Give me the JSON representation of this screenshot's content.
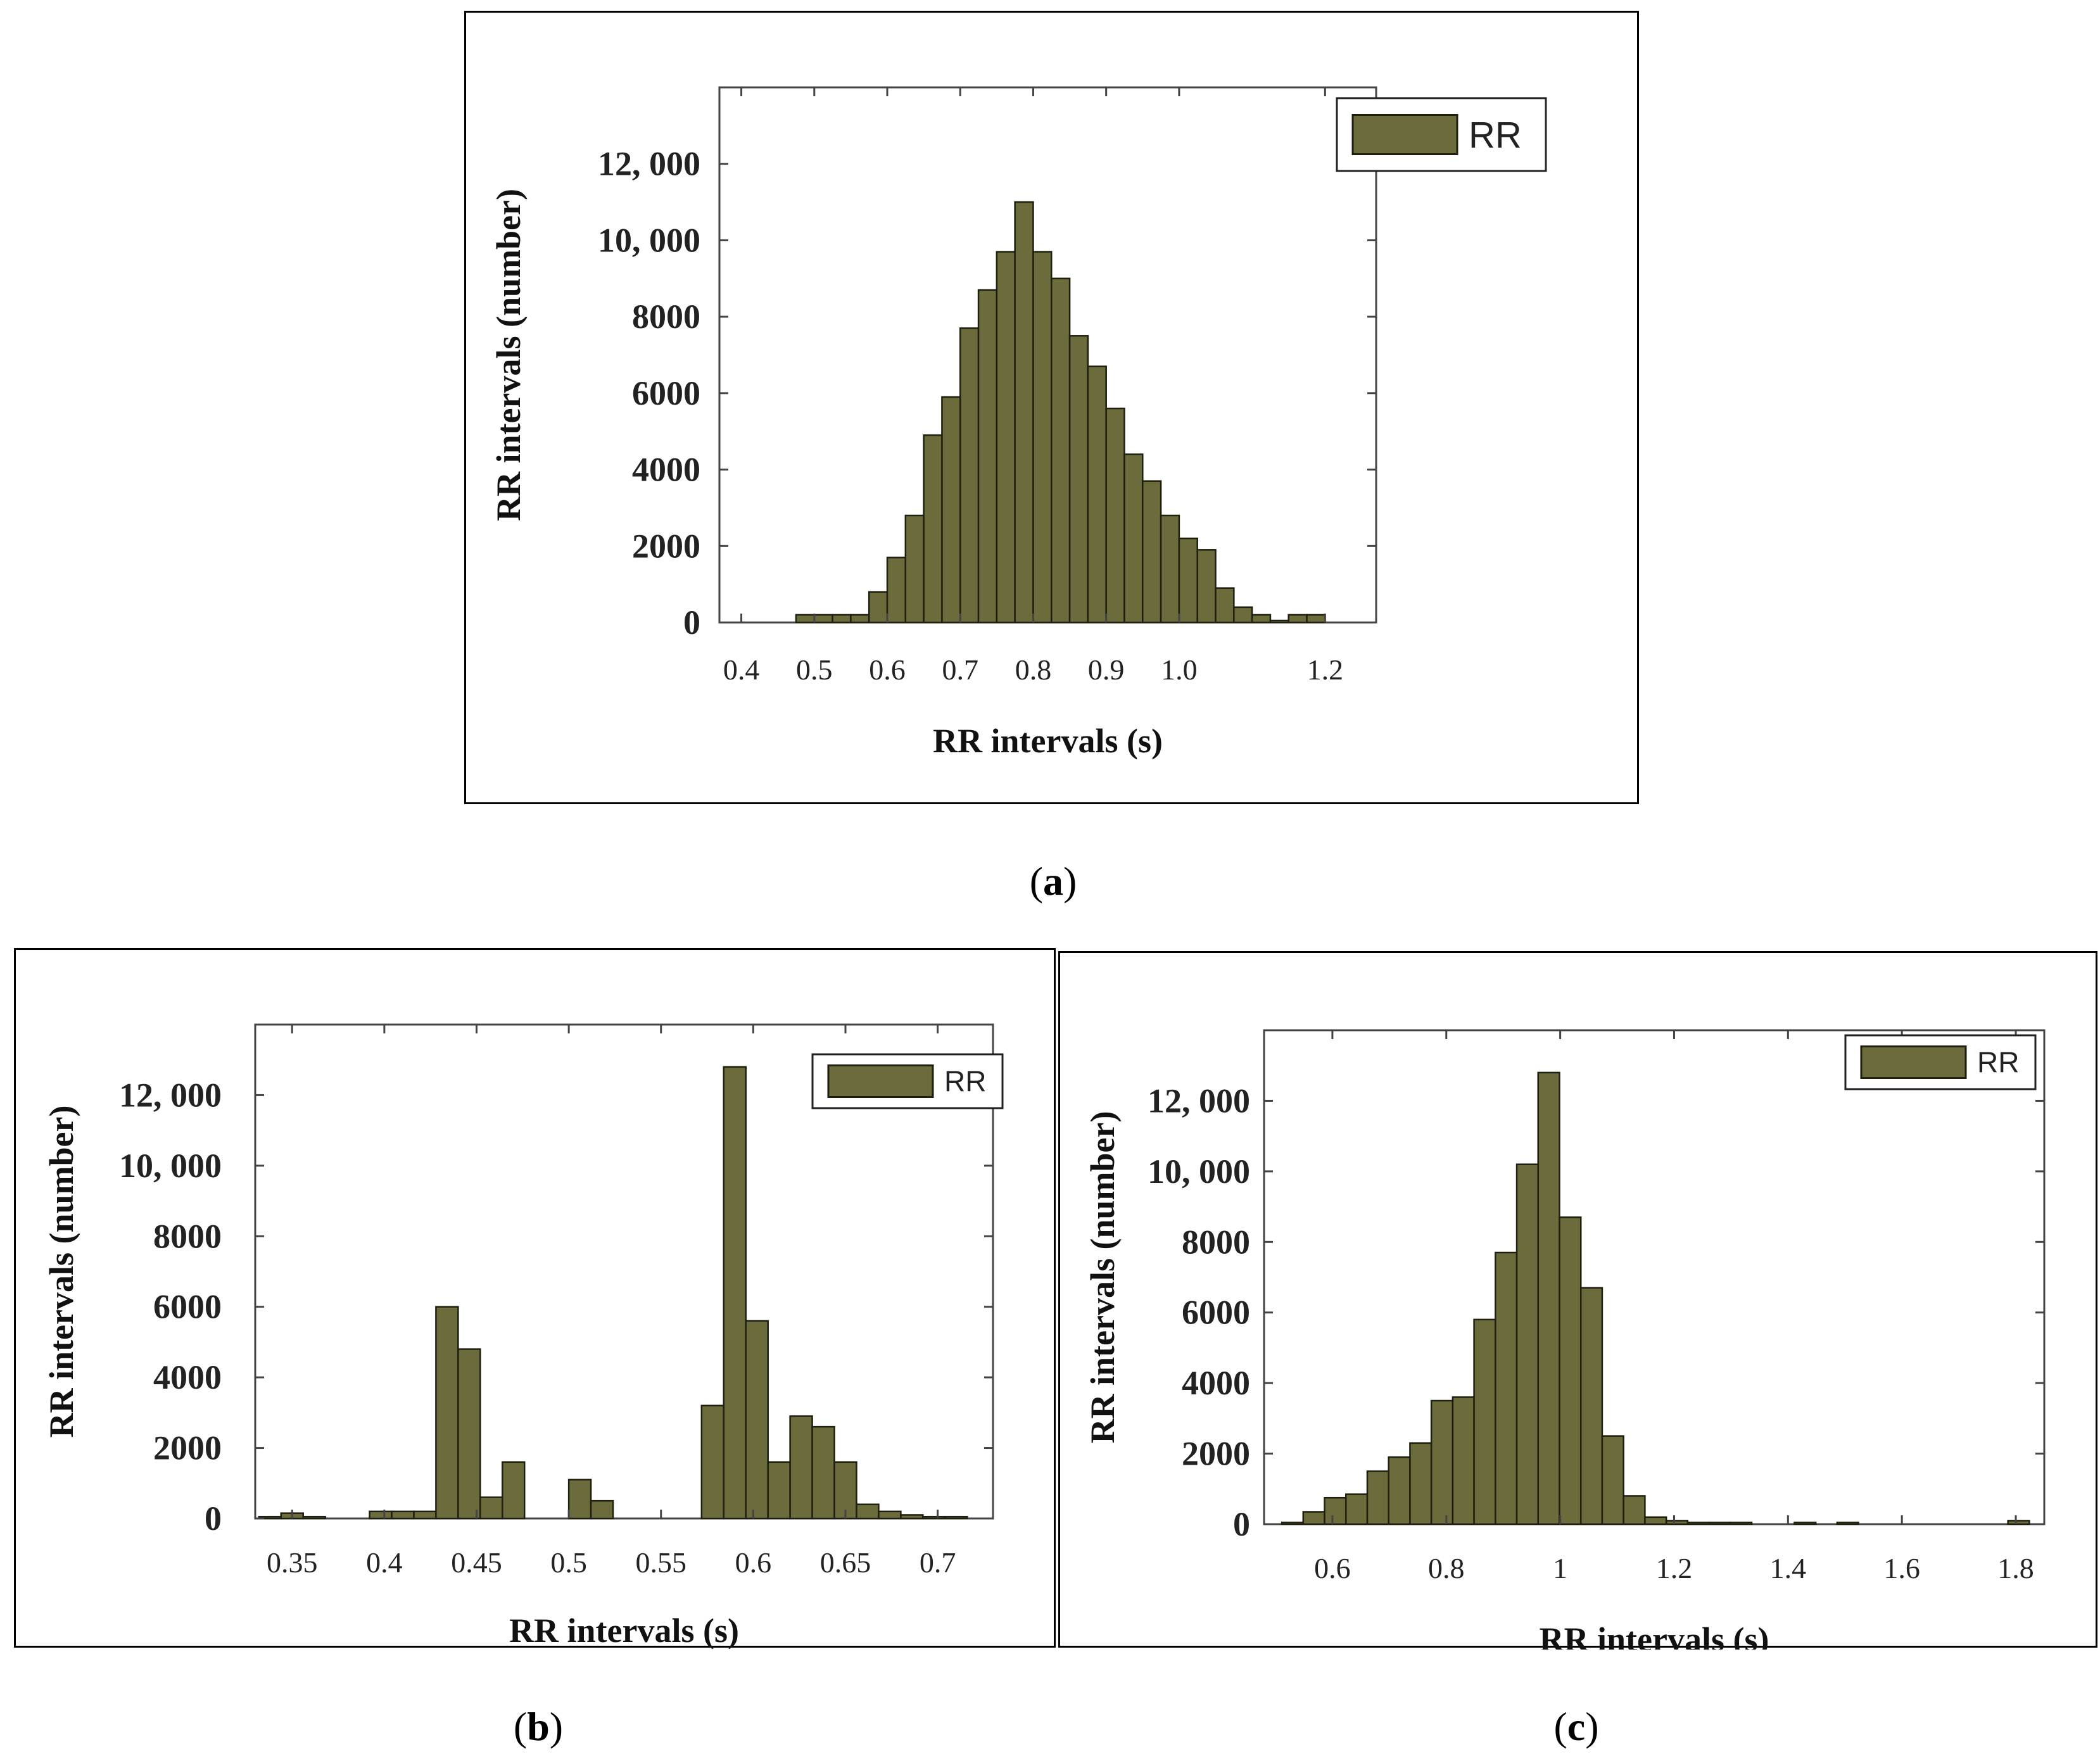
{
  "colors": {
    "bar_fill": "#6b6b3c",
    "bar_stroke": "#1f1f10",
    "frame": "#000000"
  },
  "panels": [
    {
      "caption": "a",
      "chart_data": {
        "type": "bar",
        "title": "",
        "xlabel": "RR intervals (s)",
        "ylabel": "RR intervals (number)",
        "legend": [
          "RR"
        ],
        "legend_position": "top-right",
        "xlim": [
          0.37,
          1.27
        ],
        "ylim": [
          0,
          14000
        ],
        "x_ticks": [
          0.4,
          0.5,
          0.6,
          0.7,
          0.8,
          0.9,
          1.0,
          1.2
        ],
        "x_tick_labels": [
          "0.4",
          "0.5",
          "0.6",
          "0.7",
          "0.8",
          "0.9",
          "1.0",
          "1.2"
        ],
        "y_ticks": [
          0,
          2000,
          4000,
          6000,
          8000,
          10000,
          12000
        ],
        "y_tick_labels": [
          "0",
          "2000",
          "4000",
          "6000",
          "8000",
          "10, 000",
          "12, 000"
        ],
        "bin_width": 0.025,
        "series": [
          {
            "name": "RR",
            "x": [
              0.4875,
              0.5125,
              0.5375,
              0.5625,
              0.5875,
              0.6125,
              0.6375,
              0.6625,
              0.6875,
              0.7125,
              0.7375,
              0.7625,
              0.7875,
              0.8125,
              0.8375,
              0.8625,
              0.8875,
              0.9125,
              0.9375,
              0.9625,
              0.9875,
              1.0125,
              1.0375,
              1.0625,
              1.0875,
              1.1125,
              1.1375,
              1.1625,
              1.1875
            ],
            "values": [
              200,
              200,
              200,
              200,
              800,
              1700,
              2800,
              4900,
              5900,
              7700,
              8700,
              9700,
              11000,
              9700,
              9000,
              7500,
              6700,
              5600,
              4400,
              3700,
              2800,
              2200,
              1900,
              900,
              400,
              200,
              50,
              200,
              200
            ]
          }
        ]
      }
    },
    {
      "caption": "b",
      "chart_data": {
        "type": "bar",
        "title": "",
        "xlabel": "RR intervals (s)",
        "ylabel": "RR intervals (number)",
        "legend": [
          "RR"
        ],
        "legend_position": "top-right",
        "xlim": [
          0.33,
          0.73
        ],
        "ylim": [
          0,
          14000
        ],
        "x_ticks": [
          0.35,
          0.4,
          0.45,
          0.5,
          0.55,
          0.6,
          0.65,
          0.7
        ],
        "x_tick_labels": [
          "0.35",
          "0.4",
          "0.45",
          "0.5",
          "0.55",
          "0.6",
          "0.65",
          "0.7"
        ],
        "y_ticks": [
          0,
          2000,
          4000,
          6000,
          8000,
          10000,
          12000
        ],
        "y_tick_labels": [
          "0",
          "2000",
          "4000",
          "6000",
          "8000",
          "10, 000",
          "12, 000"
        ],
        "bin_width": 0.012,
        "series": [
          {
            "name": "RR",
            "x": [
              0.338,
              0.35,
              0.362,
              0.398,
              0.41,
              0.422,
              0.434,
              0.446,
              0.458,
              0.47,
              0.506,
              0.518,
              0.578,
              0.59,
              0.602,
              0.614,
              0.626,
              0.638,
              0.65,
              0.662,
              0.674,
              0.686,
              0.698,
              0.71
            ],
            "values": [
              50,
              150,
              50,
              200,
              200,
              200,
              6000,
              4800,
              600,
              1600,
              1100,
              500,
              3200,
              12800,
              5600,
              1600,
              2900,
              2600,
              1600,
              400,
              200,
              100,
              50,
              50
            ]
          }
        ]
      }
    },
    {
      "caption": "c",
      "chart_data": {
        "type": "bar",
        "title": "",
        "xlabel": "RR intervals (s)",
        "ylabel": "RR intervals (number)",
        "legend": [
          "RR"
        ],
        "legend_position": "top-right",
        "xlim": [
          0.48,
          1.85
        ],
        "ylim": [
          0,
          14000
        ],
        "x_ticks": [
          0.6,
          0.8,
          1.0,
          1.2,
          1.4,
          1.6,
          1.8
        ],
        "x_tick_labels": [
          "0.6",
          "0.8",
          "1",
          "1.2",
          "1.4",
          "1.6",
          "1.8"
        ],
        "y_ticks": [
          0,
          2000,
          4000,
          6000,
          8000,
          10000,
          12000
        ],
        "y_tick_labels": [
          "0",
          "2000",
          "4000",
          "6000",
          "8000",
          "10, 000",
          "12, 000"
        ],
        "bin_width": 0.0375,
        "series": [
          {
            "name": "RR",
            "x": [
              0.53,
              0.5675,
              0.605,
              0.6425,
              0.68,
              0.7175,
              0.755,
              0.7925,
              0.83,
              0.8675,
              0.905,
              0.9425,
              0.98,
              1.0175,
              1.055,
              1.0925,
              1.13,
              1.1675,
              1.205,
              1.2425,
              1.28,
              1.3175,
              1.43,
              1.505,
              1.805
            ],
            "values": [
              50,
              350,
              750,
              850,
              1500,
              1900,
              2300,
              3500,
              3600,
              5800,
              7700,
              10200,
              12800,
              8700,
              6700,
              2500,
              800,
              200,
              100,
              50,
              50,
              50,
              50,
              50,
              100
            ]
          }
        ]
      }
    }
  ]
}
